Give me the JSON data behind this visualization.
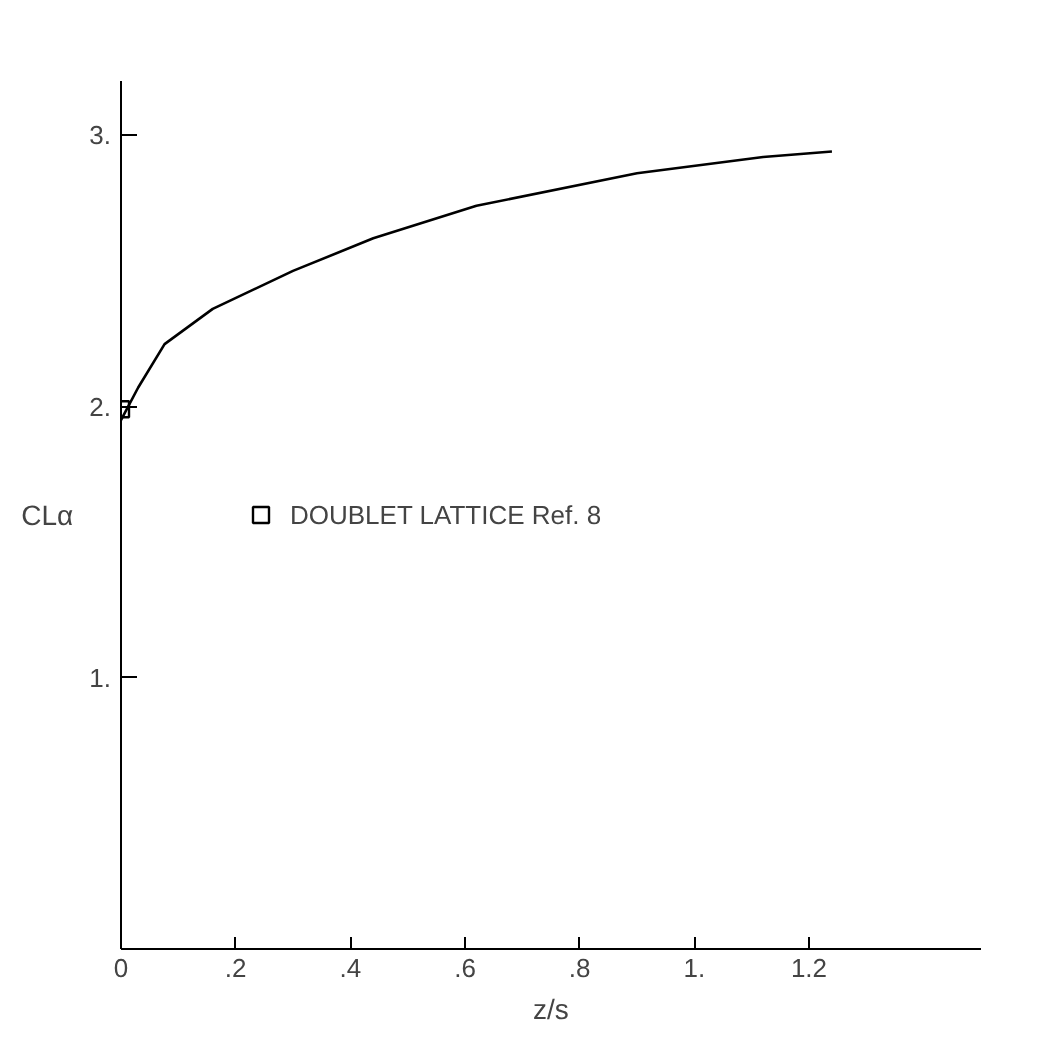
{
  "chart_data": {
    "type": "line",
    "xlabel": "z/s",
    "ylabel": "CLα",
    "xlim": [
      0,
      1.5
    ],
    "ylim": [
      0,
      3.2
    ],
    "xticks": [
      0,
      {
        "value": 0.2,
        "label": ".2"
      },
      {
        "value": 0.4,
        "label": ".4"
      },
      {
        "value": 0.6,
        "label": ".6"
      },
      {
        "value": 0.8,
        "label": ".8"
      },
      {
        "value": 1,
        "label": "1."
      },
      {
        "value": 1.2,
        "label": "1.2"
      }
    ],
    "yticks": [
      {
        "value": 1,
        "label": "1."
      },
      {
        "value": 2,
        "label": "2."
      },
      {
        "value": 3,
        "label": "3."
      }
    ],
    "grid": false,
    "legend": "left",
    "series": [
      {
        "color": "#000000",
        "x": [
          0,
          0.03,
          0.076,
          0.16,
          0.3,
          0.44,
          0.62,
          0.9,
          1.12,
          1.24
        ],
        "values": [
          1.95,
          2.07,
          2.23,
          2.36,
          2.5,
          2.62,
          2.74,
          2.86,
          2.92,
          2.94
        ]
      },
      {
        "type": "scatter",
        "name": "DOUBLET LATTICE Ref. 8",
        "marker": "square",
        "color": "#000000",
        "x": [
          0
        ],
        "values": [
          1.99
        ]
      }
    ]
  }
}
